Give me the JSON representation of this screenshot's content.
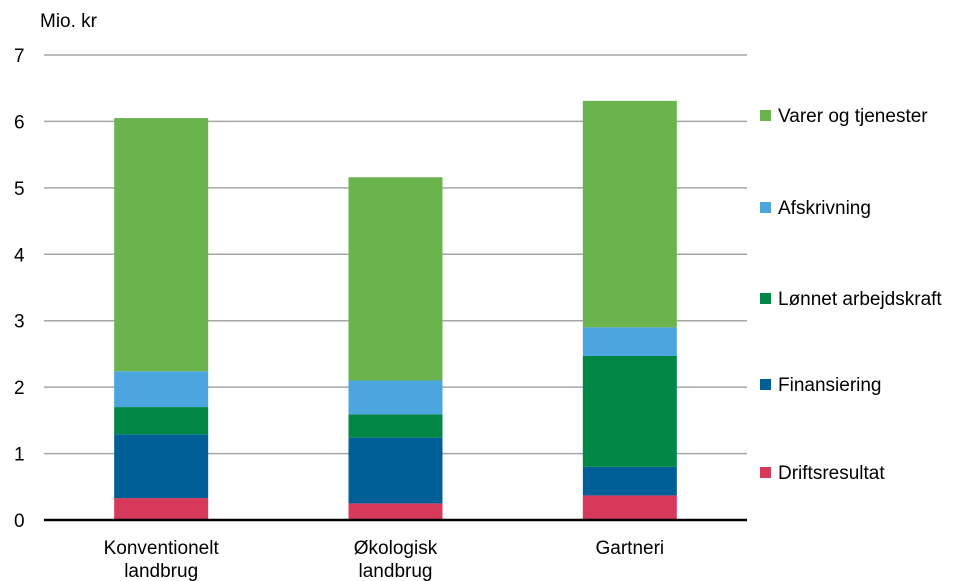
{
  "chart_data": {
    "type": "bar",
    "stacked": true,
    "unit_label": "Mio. kr",
    "categories": [
      [
        "Konventionelt",
        "landbrug"
      ],
      [
        "Økologisk",
        "landbrug"
      ],
      [
        "Gartneri"
      ]
    ],
    "series": [
      {
        "name": "Driftsresultat",
        "color": "#d6395a",
        "values": [
          0.33,
          0.25,
          0.37
        ]
      },
      {
        "name": "Finansiering",
        "color": "#005f96",
        "values": [
          0.96,
          0.99,
          0.43
        ]
      },
      {
        "name": "Lønnet arbejdskraft",
        "color": "#008645",
        "values": [
          0.41,
          0.35,
          1.67
        ]
      },
      {
        "name": "Afskrivning",
        "color": "#4ba6de",
        "values": [
          0.54,
          0.51,
          0.43
        ]
      },
      {
        "name": "Varer og tjenester",
        "color": "#6ab34d",
        "values": [
          3.81,
          3.06,
          3.41
        ]
      }
    ],
    "ylim": [
      0,
      7
    ],
    "yticks": [
      "0",
      "1",
      "2",
      "3",
      "4",
      "5",
      "6",
      "7"
    ],
    "grid": true,
    "legend_position": "right"
  }
}
